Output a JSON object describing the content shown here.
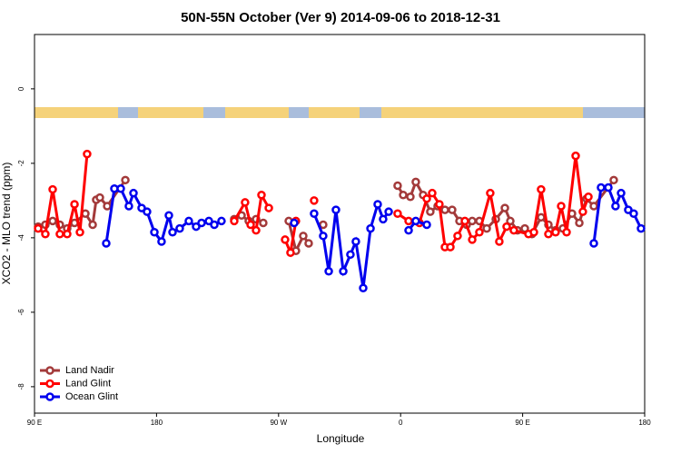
{
  "chart_data": {
    "type": "line",
    "title": "50N-55N October (Ver 9)   2014-09-06 to 2018-12-31",
    "x_label": "Longitude",
    "y_label": "XCO2 - MLO trend (ppm)",
    "xlim": [
      90,
      540
    ],
    "xticks": [
      {
        "value": 90,
        "label": "90 E"
      },
      {
        "value": 180,
        "label": "180"
      },
      {
        "value": 270,
        "label": "90 W"
      },
      {
        "value": 360,
        "label": "0"
      },
      {
        "value": 450,
        "label": "90 E"
      },
      {
        "value": 540,
        "label": "180"
      }
    ],
    "ylim": [
      -8.71,
      1.46
    ],
    "yticks": [
      0,
      -2,
      -4,
      -6,
      -8
    ],
    "legend": "bottom-left",
    "series": [
      {
        "name": "Land Nadir",
        "color": "#a33a3a",
        "x": [
          92.7,
          98.0,
          103.4,
          108.7,
          114.1,
          119.5,
          127.5,
          132.9,
          135.5,
          138.2,
          143.6,
          157.0,
          null,
          237.3,
          242.7,
          248.0,
          253.4,
          258.7,
          null,
          277.5,
          282.8,
          288.2,
          292.2,
          null,
          302.9,
          null,
          357.8,
          361.9,
          367.2,
          371.2,
          376.6,
          381.9,
          387.3,
          392.7,
          398.0,
          403.4,
          408.7,
          412.8,
          418.1,
          423.5,
          430.2,
          436.9,
          440.9,
          446.2,
          451.6,
          456.9,
          463.6,
          469.0,
          474.3,
          479.7,
          486.4,
          491.8,
          497.1,
          502.5,
          517.2
        ],
        "values": [
          -3.7,
          -3.65,
          -3.55,
          -3.65,
          -3.75,
          -3.6,
          -3.35,
          -3.65,
          -2.98,
          -2.92,
          -3.15,
          -2.45,
          null,
          -3.5,
          -3.4,
          -3.55,
          -3.5,
          -3.6,
          null,
          -3.55,
          -4.35,
          -3.95,
          -4.15,
          null,
          -3.65,
          null,
          -2.6,
          -2.85,
          -2.9,
          -2.5,
          -2.85,
          -3.3,
          -3.15,
          -3.25,
          -3.25,
          -3.55,
          -3.65,
          -3.55,
          -3.55,
          -3.75,
          -3.5,
          -3.2,
          -3.55,
          -3.8,
          -3.75,
          -3.9,
          -3.45,
          -3.65,
          -3.8,
          -3.75,
          -3.35,
          -3.6,
          -2.95,
          -3.15,
          -2.45
        ]
      },
      {
        "name": "Land Glint",
        "color": "#ff0000",
        "x": [
          92.7,
          98.0,
          103.4,
          108.7,
          114.1,
          119.5,
          123.5,
          128.8,
          null,
          237.3,
          245.3,
          249.4,
          253.4,
          257.4,
          262.8,
          null,
          274.8,
          278.8,
          282.8,
          null,
          296.2,
          null,
          357.8,
          365.9,
          373.9,
          379.3,
          383.3,
          388.6,
          392.7,
          396.7,
          402.0,
          407.4,
          412.8,
          418.1,
          426.1,
          432.8,
          438.2,
          443.5,
          454.3,
          458.3,
          463.6,
          469.0,
          474.3,
          478.4,
          482.4,
          489.1,
          494.4,
          498.5
        ],
        "values": [
          -3.75,
          -3.9,
          -2.7,
          -3.9,
          -3.9,
          -3.1,
          -3.85,
          -1.75,
          null,
          -3.55,
          -3.05,
          -3.65,
          -3.8,
          -2.85,
          -3.2,
          null,
          -4.05,
          -4.4,
          -3.55,
          null,
          -3.0,
          null,
          -3.35,
          -3.55,
          -3.6,
          -2.95,
          -2.8,
          -3.1,
          -4.25,
          -4.25,
          -3.95,
          -3.55,
          -4.05,
          -3.85,
          -2.8,
          -4.1,
          -3.7,
          -3.8,
          -3.9,
          -3.85,
          -2.7,
          -3.9,
          -3.85,
          -3.15,
          -3.85,
          -1.8,
          -3.3,
          -2.9
        ]
      },
      {
        "name": "Ocean Glint",
        "color": "#0000ee",
        "x": [
          142.9,
          148.9,
          153.6,
          159.6,
          163.0,
          169.0,
          173.0,
          178.4,
          183.7,
          189.1,
          191.8,
          197.1,
          203.8,
          209.2,
          213.2,
          218.6,
          222.6,
          227.9,
          null,
          281.5,
          null,
          296.2,
          302.9,
          307.0,
          312.3,
          317.7,
          323.0,
          327.0,
          332.4,
          337.8,
          343.1,
          347.1,
          351.2,
          null,
          365.9,
          371.2,
          379.3,
          null,
          502.5,
          507.8,
          513.2,
          518.5,
          522.6,
          527.9,
          531.9,
          537.3
        ],
        "values": [
          -4.15,
          -2.68,
          -2.68,
          -3.15,
          -2.8,
          -3.2,
          -3.3,
          -3.85,
          -4.1,
          -3.4,
          -3.85,
          -3.75,
          -3.55,
          -3.7,
          -3.6,
          -3.55,
          -3.65,
          -3.55,
          null,
          -3.6,
          null,
          -3.35,
          -3.95,
          -4.9,
          -3.25,
          -4.9,
          -4.45,
          -4.1,
          -5.35,
          -3.75,
          -3.1,
          -3.5,
          -3.3,
          null,
          -3.8,
          -3.55,
          -3.65,
          null,
          -4.15,
          -2.65,
          -2.65,
          -3.15,
          -2.8,
          -3.25,
          -3.35,
          -3.75
        ]
      }
    ]
  }
}
